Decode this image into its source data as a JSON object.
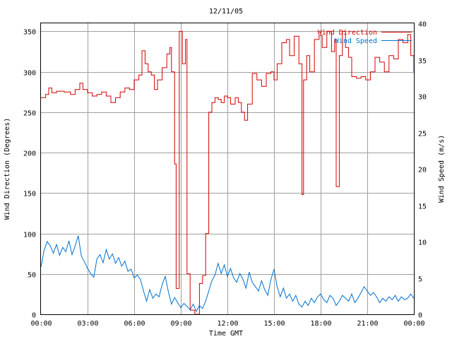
{
  "chart_data": {
    "type": "line",
    "title": "12/11/05",
    "xlabel": "Time GMT",
    "ylabel_left": "Wind Direction (Degrees)",
    "ylabel_right": "Wind Speed (m/s)",
    "x_ticks": [
      "00:00",
      "03:00",
      "06:00",
      "09:00",
      "12:00",
      "15:00",
      "18:00",
      "21:00",
      "00:00"
    ],
    "x_range_hours": [
      0,
      24
    ],
    "y_left_ticks": [
      "0",
      "50",
      "100",
      "150",
      "200",
      "250",
      "300",
      "350"
    ],
    "y_left_range": [
      0,
      360
    ],
    "y_right_ticks": [
      "0",
      "5",
      "10",
      "15",
      "20",
      "25",
      "30",
      "35",
      "40"
    ],
    "y_right_range": [
      0,
      40
    ],
    "grid": true,
    "legend_position": "top-right",
    "series": [
      {
        "name": "Wind Direction",
        "axis": "left",
        "color": "#d40000",
        "step": true,
        "points": [
          [
            0.0,
            268
          ],
          [
            0.3,
            272
          ],
          [
            0.5,
            280
          ],
          [
            0.7,
            274
          ],
          [
            1.0,
            276
          ],
          [
            1.5,
            275
          ],
          [
            1.9,
            272
          ],
          [
            2.2,
            278
          ],
          [
            2.5,
            286
          ],
          [
            2.7,
            278
          ],
          [
            3.0,
            274
          ],
          [
            3.3,
            270
          ],
          [
            3.6,
            272
          ],
          [
            3.9,
            275
          ],
          [
            4.2,
            270
          ],
          [
            4.5,
            262
          ],
          [
            4.8,
            268
          ],
          [
            5.1,
            275
          ],
          [
            5.4,
            280
          ],
          [
            5.7,
            278
          ],
          [
            6.0,
            290
          ],
          [
            6.3,
            296
          ],
          [
            6.5,
            326
          ],
          [
            6.7,
            310
          ],
          [
            6.9,
            300
          ],
          [
            7.1,
            296
          ],
          [
            7.3,
            278
          ],
          [
            7.5,
            290
          ],
          [
            7.8,
            305
          ],
          [
            8.1,
            322
          ],
          [
            8.3,
            330
          ],
          [
            8.4,
            300
          ],
          [
            8.6,
            186
          ],
          [
            8.7,
            32
          ],
          [
            8.9,
            350
          ],
          [
            9.1,
            310
          ],
          [
            9.3,
            340
          ],
          [
            9.4,
            50
          ],
          [
            9.6,
            5
          ],
          [
            9.9,
            0
          ],
          [
            10.2,
            38
          ],
          [
            10.4,
            48
          ],
          [
            10.6,
            100
          ],
          [
            10.8,
            250
          ],
          [
            11.0,
            262
          ],
          [
            11.2,
            268
          ],
          [
            11.4,
            266
          ],
          [
            11.6,
            262
          ],
          [
            11.8,
            270
          ],
          [
            12.0,
            268
          ],
          [
            12.2,
            260
          ],
          [
            12.5,
            268
          ],
          [
            12.7,
            262
          ],
          [
            12.9,
            250
          ],
          [
            13.1,
            240
          ],
          [
            13.3,
            260
          ],
          [
            13.6,
            298
          ],
          [
            13.9,
            290
          ],
          [
            14.2,
            282
          ],
          [
            14.5,
            298
          ],
          [
            14.8,
            300
          ],
          [
            15.0,
            290
          ],
          [
            15.2,
            310
          ],
          [
            15.5,
            336
          ],
          [
            15.8,
            340
          ],
          [
            16.0,
            320
          ],
          [
            16.3,
            344
          ],
          [
            16.6,
            310
          ],
          [
            16.8,
            148
          ],
          [
            16.9,
            290
          ],
          [
            17.1,
            320
          ],
          [
            17.3,
            300
          ],
          [
            17.6,
            340
          ],
          [
            17.9,
            345
          ],
          [
            18.1,
            330
          ],
          [
            18.4,
            350
          ],
          [
            18.7,
            325
          ],
          [
            18.9,
            340
          ],
          [
            19.0,
            158
          ],
          [
            19.2,
            320
          ],
          [
            19.4,
            350
          ],
          [
            19.6,
            330
          ],
          [
            19.8,
            318
          ],
          [
            20.0,
            294
          ],
          [
            20.3,
            292
          ],
          [
            20.6,
            294
          ],
          [
            20.9,
            290
          ],
          [
            21.2,
            300
          ],
          [
            21.5,
            318
          ],
          [
            21.8,
            312
          ],
          [
            22.1,
            300
          ],
          [
            22.4,
            320
          ],
          [
            22.7,
            316
          ],
          [
            23.0,
            340
          ],
          [
            23.3,
            336
          ],
          [
            23.6,
            346
          ],
          [
            23.8,
            320
          ],
          [
            24.0,
            300
          ]
        ]
      },
      {
        "name": "Wind Speed",
        "axis": "right",
        "color": "#0070d0",
        "step": false,
        "points": [
          [
            0.0,
            6.5
          ],
          [
            0.2,
            8.8
          ],
          [
            0.4,
            10.0
          ],
          [
            0.6,
            9.4
          ],
          [
            0.8,
            8.4
          ],
          [
            1.0,
            9.6
          ],
          [
            1.2,
            8.1
          ],
          [
            1.4,
            9.2
          ],
          [
            1.6,
            8.6
          ],
          [
            1.8,
            10.1
          ],
          [
            2.0,
            8.2
          ],
          [
            2.2,
            9.4
          ],
          [
            2.4,
            10.8
          ],
          [
            2.6,
            8.0
          ],
          [
            2.8,
            7.2
          ],
          [
            3.0,
            6.3
          ],
          [
            3.2,
            5.6
          ],
          [
            3.4,
            5.1
          ],
          [
            3.6,
            7.6
          ],
          [
            3.8,
            8.2
          ],
          [
            4.0,
            7.1
          ],
          [
            4.2,
            8.9
          ],
          [
            4.4,
            7.6
          ],
          [
            4.6,
            8.3
          ],
          [
            4.8,
            7.0
          ],
          [
            5.0,
            7.8
          ],
          [
            5.2,
            6.6
          ],
          [
            5.4,
            7.3
          ],
          [
            5.6,
            5.9
          ],
          [
            5.8,
            6.2
          ],
          [
            6.0,
            5.0
          ],
          [
            6.2,
            5.4
          ],
          [
            6.4,
            4.8
          ],
          [
            6.6,
            3.2
          ],
          [
            6.8,
            1.8
          ],
          [
            7.0,
            3.4
          ],
          [
            7.2,
            2.2
          ],
          [
            7.4,
            2.8
          ],
          [
            7.6,
            2.4
          ],
          [
            7.8,
            4.1
          ],
          [
            8.0,
            5.2
          ],
          [
            8.2,
            3.1
          ],
          [
            8.4,
            1.4
          ],
          [
            8.6,
            2.3
          ],
          [
            8.8,
            1.6
          ],
          [
            9.0,
            0.9
          ],
          [
            9.2,
            1.5
          ],
          [
            9.4,
            1.1
          ],
          [
            9.6,
            0.6
          ],
          [
            9.8,
            1.4
          ],
          [
            10.0,
            0.4
          ],
          [
            10.2,
            1.2
          ],
          [
            10.4,
            0.8
          ],
          [
            10.6,
            1.8
          ],
          [
            10.8,
            3.2
          ],
          [
            11.0,
            4.6
          ],
          [
            11.2,
            5.4
          ],
          [
            11.4,
            7.0
          ],
          [
            11.6,
            5.6
          ],
          [
            11.8,
            6.8
          ],
          [
            12.0,
            5.2
          ],
          [
            12.2,
            6.3
          ],
          [
            12.4,
            5.0
          ],
          [
            12.6,
            4.4
          ],
          [
            12.8,
            5.6
          ],
          [
            13.0,
            4.8
          ],
          [
            13.2,
            3.6
          ],
          [
            13.4,
            5.8
          ],
          [
            13.6,
            4.4
          ],
          [
            13.8,
            3.8
          ],
          [
            14.0,
            3.2
          ],
          [
            14.2,
            4.6
          ],
          [
            14.4,
            3.4
          ],
          [
            14.6,
            2.6
          ],
          [
            14.8,
            4.8
          ],
          [
            15.0,
            6.2
          ],
          [
            15.2,
            3.8
          ],
          [
            15.4,
            2.4
          ],
          [
            15.6,
            3.6
          ],
          [
            15.8,
            2.2
          ],
          [
            16.0,
            2.8
          ],
          [
            16.2,
            1.8
          ],
          [
            16.4,
            2.6
          ],
          [
            16.6,
            1.4
          ],
          [
            16.8,
            1.0
          ],
          [
            17.0,
            1.8
          ],
          [
            17.2,
            1.2
          ],
          [
            17.4,
            2.2
          ],
          [
            17.6,
            1.6
          ],
          [
            17.8,
            2.4
          ],
          [
            18.0,
            2.8
          ],
          [
            18.2,
            2.0
          ],
          [
            18.4,
            1.6
          ],
          [
            18.6,
            2.6
          ],
          [
            18.8,
            2.2
          ],
          [
            19.0,
            1.2
          ],
          [
            19.2,
            1.8
          ],
          [
            19.4,
            2.6
          ],
          [
            19.6,
            2.2
          ],
          [
            19.8,
            1.8
          ],
          [
            20.0,
            2.8
          ],
          [
            20.2,
            1.6
          ],
          [
            20.4,
            2.2
          ],
          [
            20.6,
            3.0
          ],
          [
            20.8,
            3.8
          ],
          [
            21.0,
            3.2
          ],
          [
            21.2,
            2.6
          ],
          [
            21.4,
            3.0
          ],
          [
            21.6,
            2.4
          ],
          [
            21.8,
            1.6
          ],
          [
            22.0,
            2.2
          ],
          [
            22.2,
            1.8
          ],
          [
            22.4,
            2.4
          ],
          [
            22.6,
            2.0
          ],
          [
            22.8,
            2.6
          ],
          [
            23.0,
            1.8
          ],
          [
            23.2,
            2.4
          ],
          [
            23.4,
            2.0
          ],
          [
            23.6,
            2.2
          ],
          [
            23.8,
            2.8
          ],
          [
            24.0,
            2.2
          ]
        ]
      }
    ]
  }
}
